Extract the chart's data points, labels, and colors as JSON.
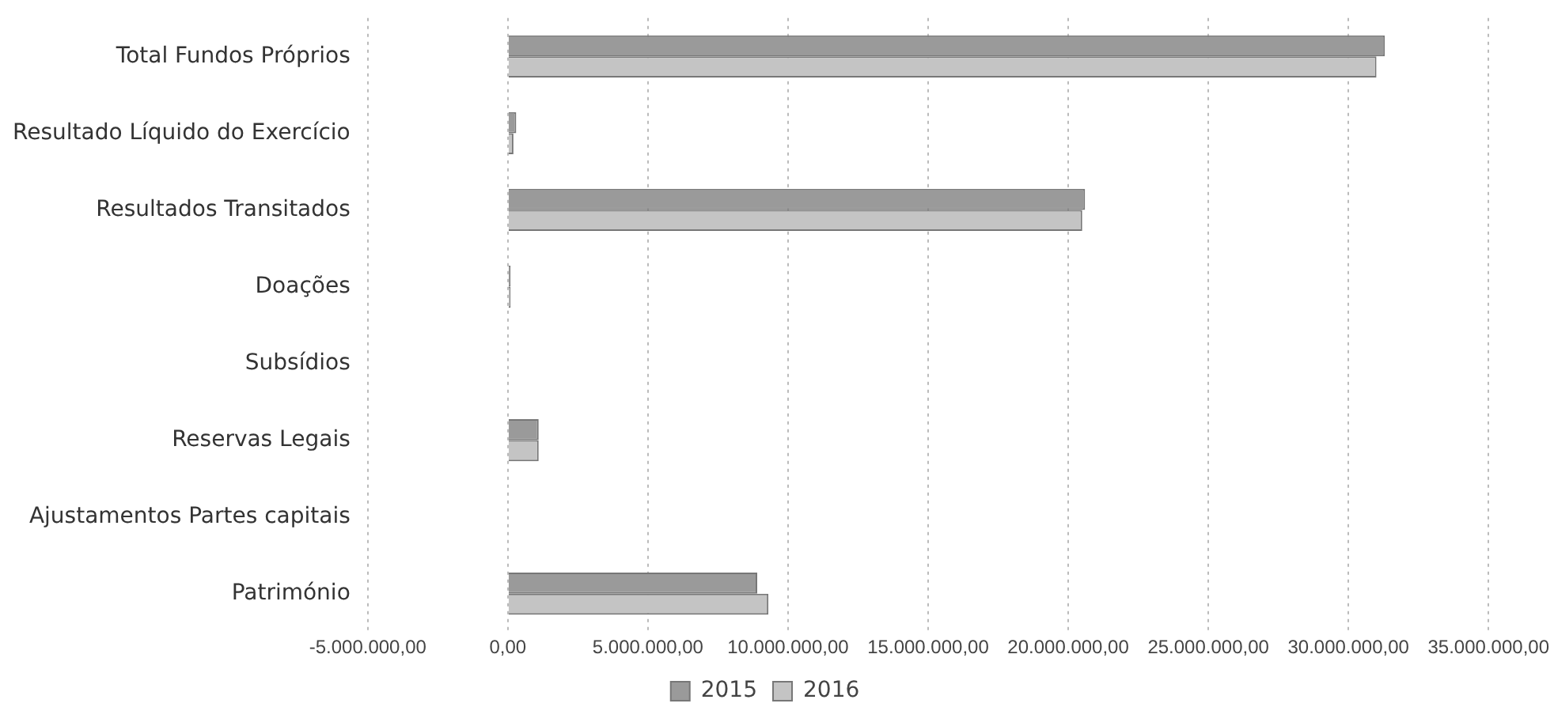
{
  "chart_data": {
    "type": "bar",
    "orientation": "horizontal",
    "categories": [
      "Total Fundos Próprios",
      "Resultado Líquido do Exercício",
      "Resultados Transitados",
      "Doações",
      "Subsídios",
      "Reservas Legais",
      "Ajustamentos Partes capitais",
      "Património"
    ],
    "series": [
      {
        "name": "2015",
        "color": "#9a9a9a",
        "values": [
          31300000,
          300000,
          20600000,
          100000,
          0,
          1100000,
          0,
          8900000
        ]
      },
      {
        "name": "2016",
        "color": "#c4c4c4",
        "values": [
          31000000,
          200000,
          20500000,
          100000,
          0,
          1100000,
          0,
          9300000
        ]
      }
    ],
    "xlim": [
      -5000000,
      35000000
    ],
    "xticks": [
      {
        "value": -5000000,
        "label": "-5.000.000,00"
      },
      {
        "value": 0,
        "label": "0,00"
      },
      {
        "value": 5000000,
        "label": "5.000.000,00"
      },
      {
        "value": 10000000,
        "label": "10.000.000,00"
      },
      {
        "value": 15000000,
        "label": "15.000.000,00"
      },
      {
        "value": 20000000,
        "label": "20.000.000,00"
      },
      {
        "value": 25000000,
        "label": "25.000.000,00"
      },
      {
        "value": 30000000,
        "label": "30.000.000,00"
      },
      {
        "value": 35000000,
        "label": "35.000.000,00"
      }
    ],
    "grid": "x",
    "legend": "bottom"
  }
}
